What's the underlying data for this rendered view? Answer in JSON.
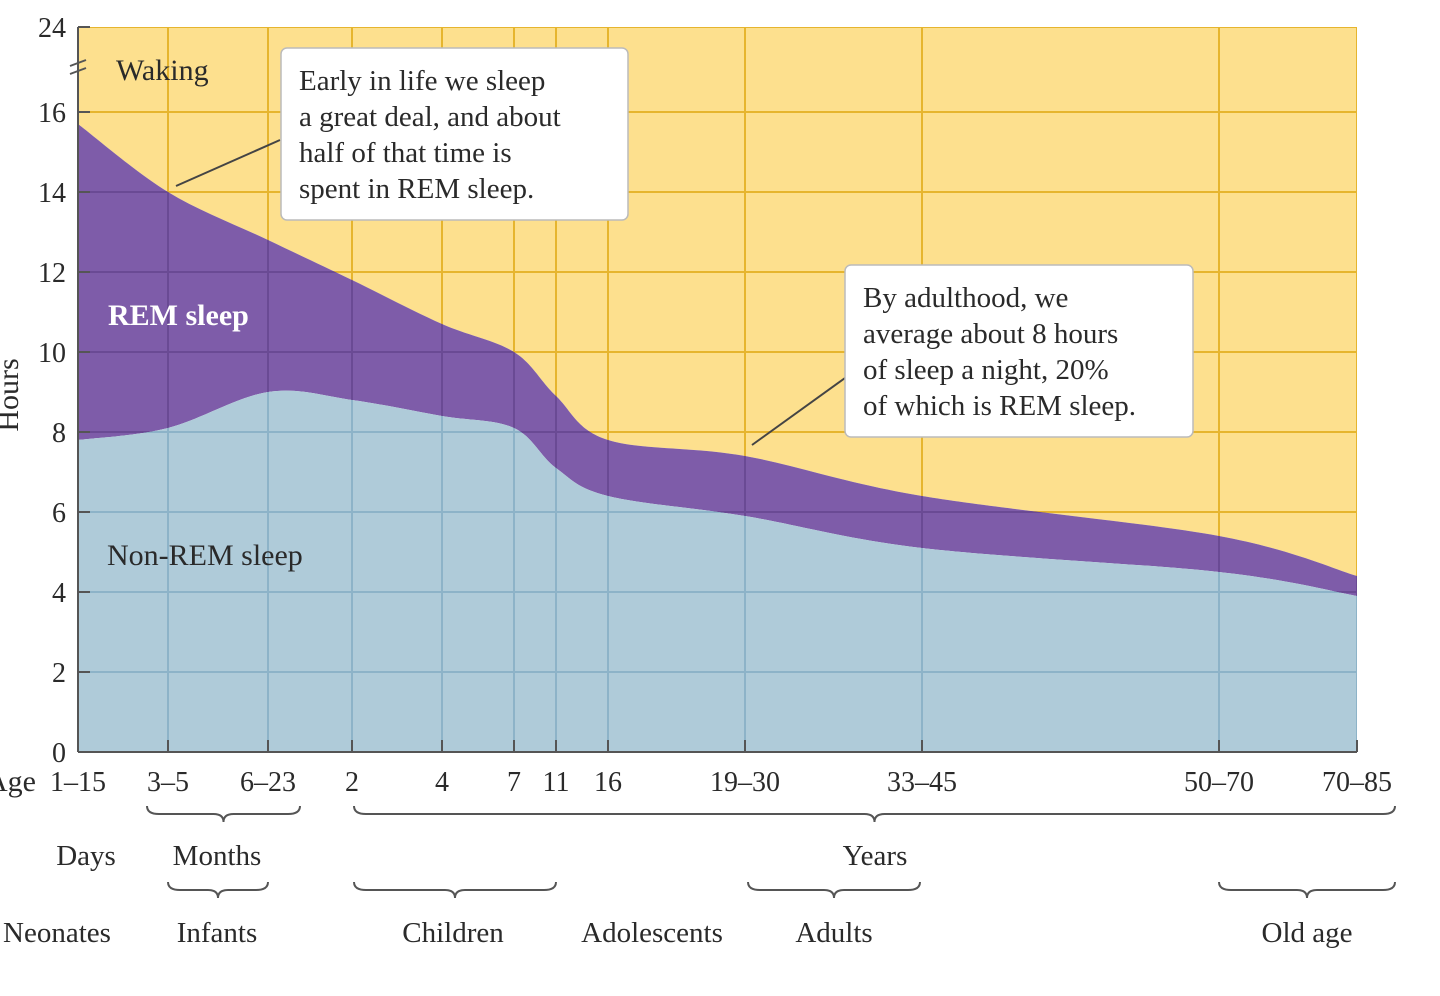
{
  "chart_data": {
    "type": "area",
    "stacked": true,
    "ylabel": "Hours",
    "xlabel": "Age",
    "ylim": [
      0,
      24
    ],
    "y_axis_break": [
      16,
      24
    ],
    "yticks": [
      "0",
      "2",
      "4",
      "6",
      "8",
      "10",
      "12",
      "14",
      "16",
      "24"
    ],
    "grid": true,
    "categories": [
      "1–15",
      "3–5",
      "6–23",
      "2",
      "4",
      "7",
      "11",
      "16",
      "19–30",
      "33–45",
      "50–70",
      "70–85"
    ],
    "series": [
      {
        "name": "Non-REM sleep",
        "color": "#afcbd9",
        "values": [
          7.8,
          8.1,
          9.0,
          8.8,
          8.4,
          8.1,
          7.1,
          6.4,
          5.9,
          5.1,
          4.5,
          3.9
        ]
      },
      {
        "name": "REM sleep",
        "color": "#7e5ca9",
        "total_sleep": [
          15.7,
          14.0,
          12.8,
          11.8,
          10.7,
          10.0,
          8.9,
          7.8,
          7.4,
          6.4,
          5.4,
          4.4
        ]
      },
      {
        "name": "Waking",
        "color": "#fde08e"
      }
    ],
    "unit_groups": [
      {
        "label": "Days",
        "from": "1–15",
        "to": "1–15",
        "brace": false
      },
      {
        "label": "Months",
        "from": "3–5",
        "to": "6–23",
        "brace": true
      },
      {
        "label": "Years",
        "from": "2",
        "to": "70–85",
        "brace": true
      }
    ],
    "life_stages": [
      {
        "label": "Neonates",
        "brace": false
      },
      {
        "label": "Infants",
        "brace": true
      },
      {
        "label": "Children",
        "brace": true
      },
      {
        "label": "Adolescents",
        "brace": false
      },
      {
        "label": "Adults",
        "brace": true
      },
      {
        "label": "Old age",
        "brace": true
      }
    ],
    "annotations": [
      {
        "lines": [
          "Early in life we sleep",
          "a great deal, and about",
          "half of that time is",
          "spent in REM sleep."
        ]
      },
      {
        "lines": [
          "By adulthood, we",
          "average about 8 hours",
          "of sleep a night, 20%",
          "of which is REM sleep."
        ]
      }
    ]
  }
}
